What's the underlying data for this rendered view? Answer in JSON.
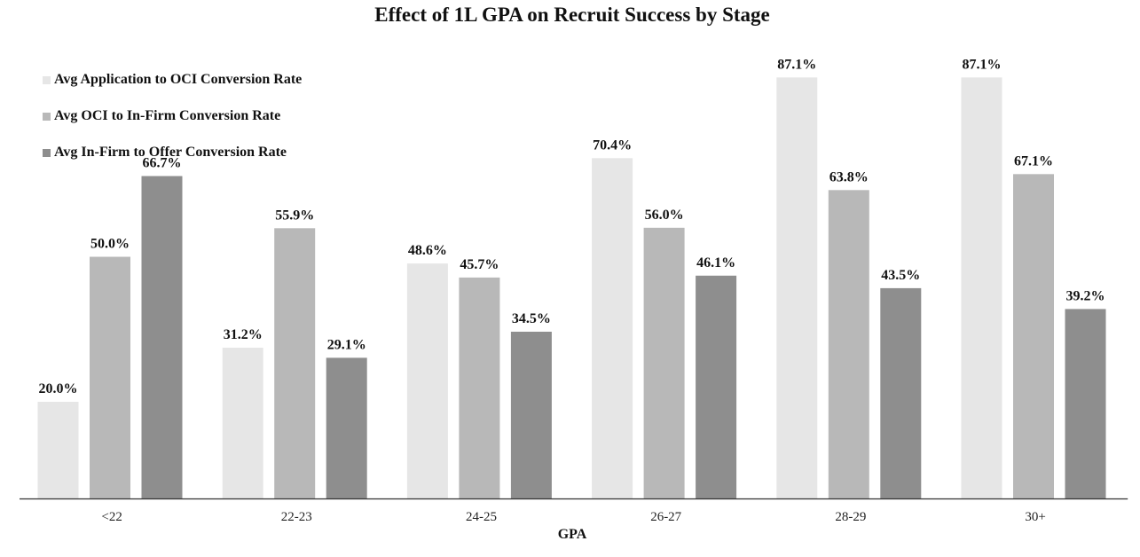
{
  "chart_data": {
    "type": "bar",
    "title": "Effect of 1L GPA on Recruit Success by Stage",
    "xlabel": "GPA",
    "ylabel": "",
    "ylim": [
      0,
      100
    ],
    "grid": false,
    "legend_position": "top-left",
    "categories": [
      "<22",
      "22-23",
      "24-25",
      "26-27",
      "28-29",
      "30+"
    ],
    "series": [
      {
        "name": "Avg Application to OCI Conversion Rate",
        "color": "#e6e6e6",
        "values": [
          20.0,
          31.2,
          48.6,
          70.4,
          87.1,
          87.1
        ],
        "labels": [
          "20.0%",
          "31.2%",
          "48.6%",
          "70.4%",
          "87.1%",
          "87.1%"
        ]
      },
      {
        "name": "Avg OCI to In-Firm Conversion Rate",
        "color": "#b8b8b8",
        "values": [
          50.0,
          55.9,
          45.7,
          56.0,
          63.8,
          67.1
        ],
        "labels": [
          "50.0%",
          "55.9%",
          "45.7%",
          "56.0%",
          "63.8%",
          "67.1%"
        ]
      },
      {
        "name": "Avg In-Firm to Offer Conversion Rate",
        "color": "#8e8e8e",
        "values": [
          66.7,
          29.1,
          34.5,
          46.1,
          43.5,
          39.2
        ],
        "labels": [
          "66.7%",
          "29.1%",
          "34.5%",
          "46.1%",
          "43.5%",
          "39.2%"
        ]
      }
    ]
  }
}
